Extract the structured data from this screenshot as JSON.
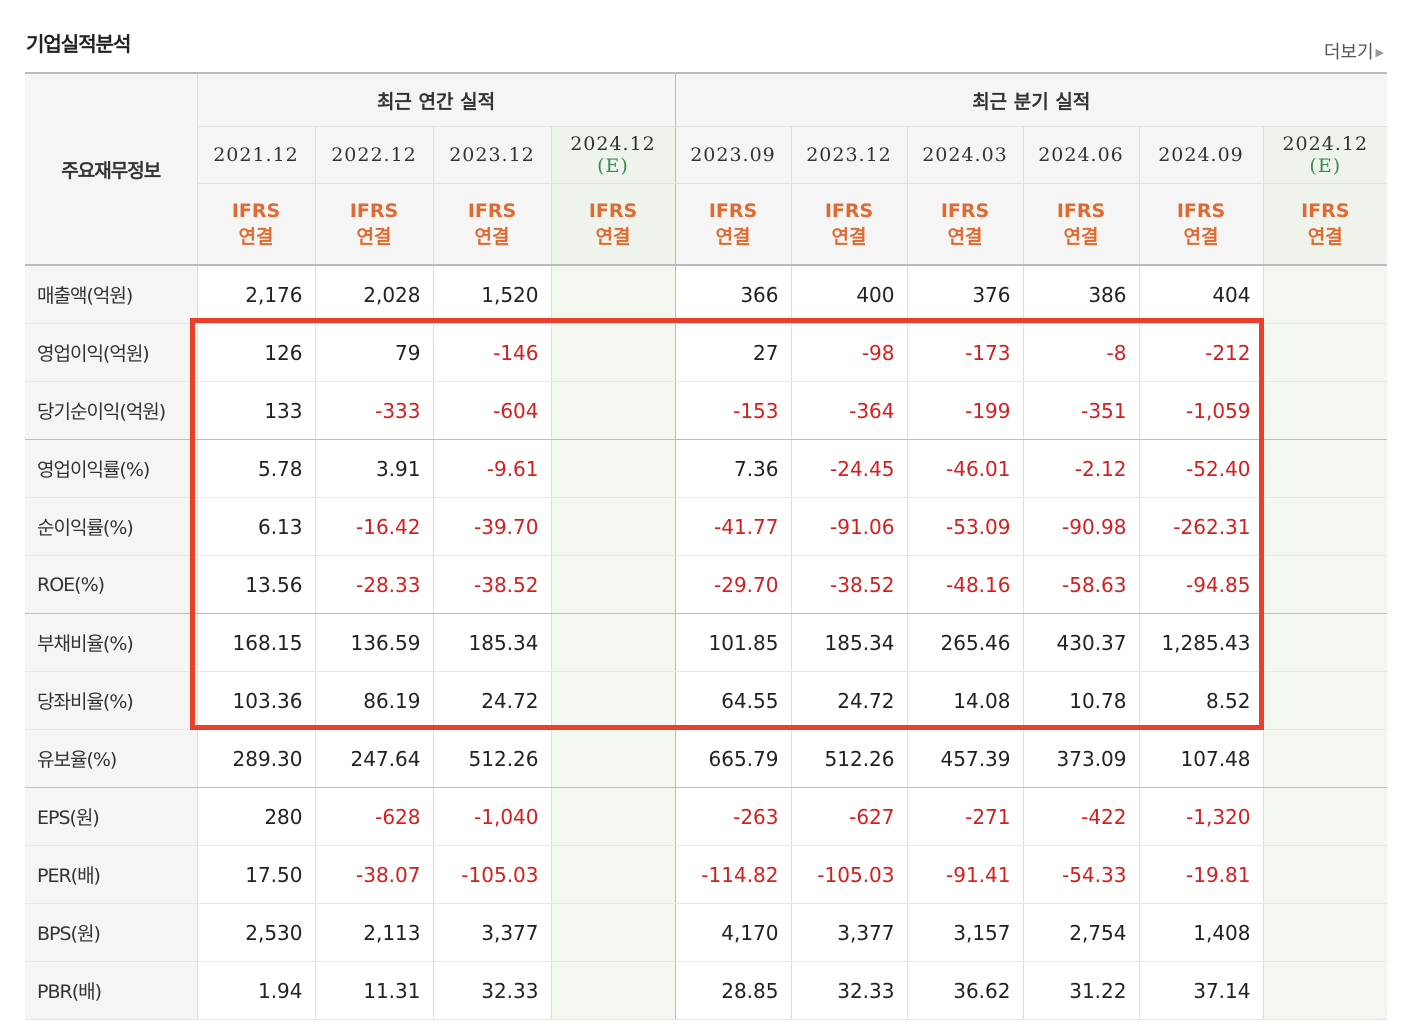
{
  "section_title": "기업실적분석",
  "more_link": "더보기",
  "table": {
    "corner_label": "주요재무정보",
    "annual_group": "최근 연간 실적",
    "quarter_group": "최근 분기 실적",
    "annual_periods": [
      {
        "date": "2021.12",
        "est": ""
      },
      {
        "date": "2022.12",
        "est": ""
      },
      {
        "date": "2023.12",
        "est": ""
      },
      {
        "date": "2024.12",
        "est": "(E)"
      }
    ],
    "quarter_periods": [
      {
        "date": "2023.09",
        "est": ""
      },
      {
        "date": "2023.12",
        "est": ""
      },
      {
        "date": "2024.03",
        "est": ""
      },
      {
        "date": "2024.06",
        "est": ""
      },
      {
        "date": "2024.09",
        "est": ""
      },
      {
        "date": "2024.12",
        "est": "(E)"
      }
    ],
    "ifrs_line1": "IFRS",
    "ifrs_line2": "연결",
    "rows": [
      {
        "label": "매출액(억원)",
        "annual": [
          "2,176",
          "2,028",
          "1,520",
          ""
        ],
        "quarter": [
          "366",
          "400",
          "376",
          "386",
          "404",
          ""
        ]
      },
      {
        "label": "영업이익(억원)",
        "annual": [
          "126",
          "79",
          "-146",
          ""
        ],
        "quarter": [
          "27",
          "-98",
          "-173",
          "-8",
          "-212",
          ""
        ]
      },
      {
        "label": "당기순이익(억원)",
        "annual": [
          "133",
          "-333",
          "-604",
          ""
        ],
        "quarter": [
          "-153",
          "-364",
          "-199",
          "-351",
          "-1,059",
          ""
        ]
      },
      {
        "label": "영업이익률(%)",
        "annual": [
          "5.78",
          "3.91",
          "-9.61",
          ""
        ],
        "quarter": [
          "7.36",
          "-24.45",
          "-46.01",
          "-2.12",
          "-52.40",
          ""
        ]
      },
      {
        "label": "순이익률(%)",
        "annual": [
          "6.13",
          "-16.42",
          "-39.70",
          ""
        ],
        "quarter": [
          "-41.77",
          "-91.06",
          "-53.09",
          "-90.98",
          "-262.31",
          ""
        ]
      },
      {
        "label": "ROE(%)",
        "annual": [
          "13.56",
          "-28.33",
          "-38.52",
          ""
        ],
        "quarter": [
          "-29.70",
          "-38.52",
          "-48.16",
          "-58.63",
          "-94.85",
          ""
        ]
      },
      {
        "label": "부채비율(%)",
        "annual": [
          "168.15",
          "136.59",
          "185.34",
          ""
        ],
        "quarter": [
          "101.85",
          "185.34",
          "265.46",
          "430.37",
          "1,285.43",
          ""
        ]
      },
      {
        "label": "당좌비율(%)",
        "annual": [
          "103.36",
          "86.19",
          "24.72",
          ""
        ],
        "quarter": [
          "64.55",
          "24.72",
          "14.08",
          "10.78",
          "8.52",
          ""
        ]
      },
      {
        "label": "유보율(%)",
        "annual": [
          "289.30",
          "247.64",
          "512.26",
          ""
        ],
        "quarter": [
          "665.79",
          "512.26",
          "457.39",
          "373.09",
          "107.48",
          ""
        ]
      },
      {
        "label": "EPS(원)",
        "annual": [
          "280",
          "-628",
          "-1,040",
          ""
        ],
        "quarter": [
          "-263",
          "-627",
          "-271",
          "-422",
          "-1,320",
          ""
        ]
      },
      {
        "label": "PER(배)",
        "annual": [
          "17.50",
          "-38.07",
          "-105.03",
          ""
        ],
        "quarter": [
          "-114.82",
          "-105.03",
          "-91.41",
          "-54.33",
          "-19.81",
          ""
        ]
      },
      {
        "label": "BPS(원)",
        "annual": [
          "2,530",
          "2,113",
          "3,377",
          ""
        ],
        "quarter": [
          "4,170",
          "3,377",
          "3,157",
          "2,754",
          "1,408",
          ""
        ]
      },
      {
        "label": "PBR(배)",
        "annual": [
          "1.94",
          "11.31",
          "32.33",
          ""
        ],
        "quarter": [
          "28.85",
          "32.33",
          "36.62",
          "31.22",
          "37.14",
          ""
        ]
      }
    ]
  },
  "colors": {
    "negative": "#d51f1f",
    "ifrs": "#e06a2f",
    "estimate": "#3b8a52",
    "highlight_box": "#e8402a"
  }
}
